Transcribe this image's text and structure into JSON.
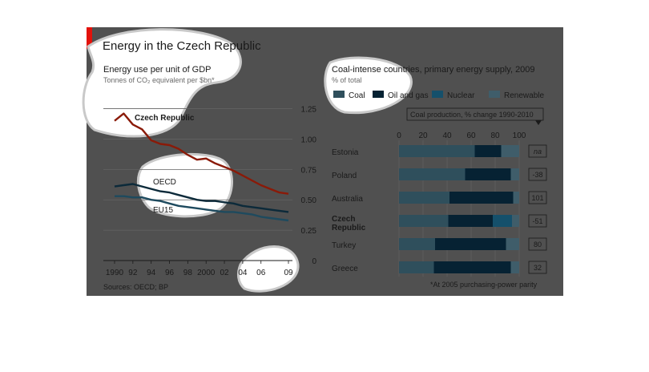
{
  "figure": {
    "title": "Energy in the Czech Republic",
    "source": "Sources: OECD; BP",
    "footnote": "*At 2005 purchasing-power parity",
    "colors": {
      "panel": "#505050",
      "brand_red": "#e3120b",
      "blob": "#ffffff",
      "text_dark": "#1a1a1a",
      "text_light": "#e6e6e6"
    }
  },
  "chart_data": [
    {
      "type": "line",
      "title": "Energy use per unit of GDP",
      "subtitle": "Tonnes of CO₂ equivalent per $bn*",
      "x": [
        1990,
        1991,
        1992,
        1993,
        1994,
        1995,
        1996,
        1997,
        1998,
        1999,
        2000,
        2001,
        2002,
        2003,
        2004,
        2005,
        2006,
        2007,
        2008,
        2009
      ],
      "x_ticks": [
        "1990",
        "92",
        "94",
        "96",
        "98",
        "2000",
        "02",
        "04",
        "06",
        "09"
      ],
      "x_tick_values": [
        1990,
        1992,
        1994,
        1996,
        1998,
        2000,
        2002,
        2004,
        2006,
        2009
      ],
      "ylim": [
        0,
        1.3
      ],
      "y_ticks": [
        "1.25",
        "1.00",
        "0.75",
        "0.50",
        "0.25",
        "0"
      ],
      "y_tick_values": [
        1.25,
        1.0,
        0.75,
        0.5,
        0.25,
        0
      ],
      "grid": true,
      "series": [
        {
          "name": "Czech Republic",
          "color": "#8a1a08",
          "values": [
            1.15,
            1.21,
            1.12,
            1.08,
            0.99,
            0.96,
            0.95,
            0.92,
            0.87,
            0.83,
            0.84,
            0.8,
            0.77,
            0.74,
            0.7,
            0.66,
            0.62,
            0.59,
            0.56,
            0.55
          ]
        },
        {
          "name": "OECD",
          "color": "#0c2a3a",
          "values": [
            0.61,
            0.62,
            0.63,
            0.61,
            0.59,
            0.57,
            0.56,
            0.54,
            0.52,
            0.5,
            0.49,
            0.49,
            0.48,
            0.47,
            0.45,
            0.44,
            0.43,
            0.42,
            0.41,
            0.4
          ]
        },
        {
          "name": "EU15",
          "color": "#1e4a5e",
          "values": [
            0.53,
            0.53,
            0.52,
            0.52,
            0.5,
            0.49,
            0.47,
            0.45,
            0.44,
            0.43,
            0.42,
            0.41,
            0.4,
            0.4,
            0.39,
            0.38,
            0.36,
            0.35,
            0.34,
            0.33
          ]
        }
      ]
    },
    {
      "type": "bar",
      "stacked": true,
      "orientation": "horizontal",
      "title": "Coal-intense countries, primary energy supply, 2009",
      "subtitle": "% of total",
      "categories": [
        "Estonia",
        "Poland",
        "Australia",
        "Czech Republic",
        "Turkey",
        "Greece"
      ],
      "xlim": [
        0,
        100
      ],
      "x_ticks": [
        "0",
        "20",
        "40",
        "60",
        "80",
        "100"
      ],
      "x_tick_values": [
        0,
        20,
        40,
        60,
        80,
        100
      ],
      "legend_position": "top",
      "series": [
        {
          "name": "Coal",
          "color": "#2f4f5c",
          "values": [
            63,
            55,
            42,
            41,
            30,
            29
          ]
        },
        {
          "name": "Oil and gas",
          "color": "#062233",
          "values": [
            22,
            38,
            53,
            37,
            59,
            64
          ]
        },
        {
          "name": "Nuclear",
          "color": "#15506b",
          "values": [
            0,
            0,
            0,
            16,
            0,
            0
          ]
        },
        {
          "name": "Renewable",
          "color": "#3f5d6a",
          "values": [
            15,
            7,
            5,
            6,
            11,
            7
          ]
        }
      ],
      "side_table": {
        "header": "Coal production, % change 1990-2010",
        "values": [
          "na",
          "-38",
          "101",
          "-51",
          "80",
          "32"
        ]
      }
    }
  ]
}
